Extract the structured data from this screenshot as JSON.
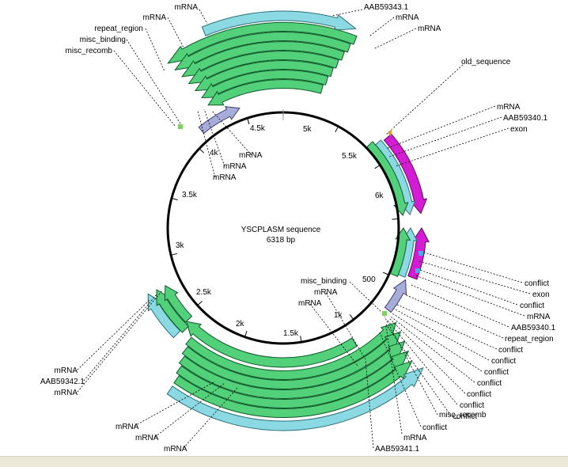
{
  "plasmid": {
    "name": "YSCPLASM sequence",
    "length_label": "6318 bp"
  },
  "colors": {
    "mrna_fill": "#52d07a",
    "mrna_stroke": "#0f5a2a",
    "cds_fill": "#8ad9e3",
    "cds_stroke": "#2a6f78",
    "exon_fill": "#d41cd4",
    "exon_stroke": "#5a0a5a",
    "misc_fill": "#a8acd8",
    "misc_stroke": "#3a3e78",
    "leader": "#000000"
  },
  "ticks": [
    "500",
    "1k",
    "1.5k",
    "2k",
    "2.5k",
    "3k",
    "3.5k",
    "4k",
    "4.5k",
    "5k",
    "5.5k",
    "6k"
  ],
  "labels": {
    "top_left": [
      "mRNA",
      "mRNA",
      "repeat_region",
      "misc_binding",
      "misc_recomb"
    ],
    "top_right": [
      "AAB59343.1",
      "mRNA",
      "mRNA"
    ],
    "inner_top": [
      "mRNA",
      "mRNA",
      "mRNA"
    ],
    "right_upper": [
      "old_sequence",
      "mRNA",
      "AAB59340.1",
      "exon"
    ],
    "right_lower": [
      "conflict",
      "exon",
      "conflict",
      "mRNA",
      "AAB59340.1",
      "repeat_region",
      "conflict",
      "conflict",
      "conflict",
      "conflict",
      "conflict",
      "conflict",
      "conflict",
      "misc_recomb",
      "conflict"
    ],
    "center_left": [
      "misc_binding",
      "mRNA",
      "mRNA"
    ],
    "left": [
      "mRNA",
      "AAB59342.1",
      "mRNA"
    ],
    "bottom": [
      "mRNA",
      "mRNA",
      "mRNA"
    ],
    "bottom_right": [
      "mRNA",
      "AAB59341.1"
    ]
  }
}
